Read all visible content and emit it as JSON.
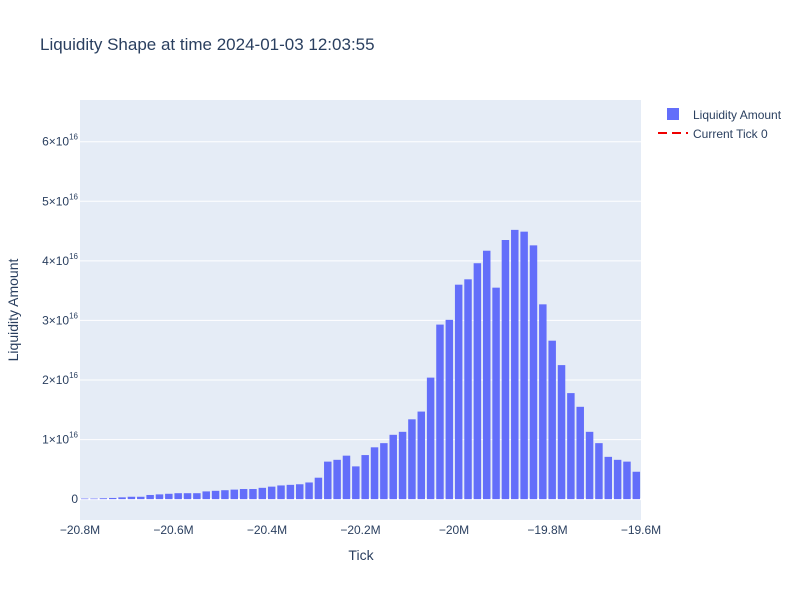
{
  "chart_data": {
    "type": "bar",
    "title": "Liquidity Shape at time 2024-01-03 12:03:55",
    "xlabel": "Tick",
    "ylabel": "Liquidity Amount",
    "xlim": [
      -20800000,
      -19600000
    ],
    "ylim": [
      -3500000000000000.0,
      6.7e+16
    ],
    "x_ticks": [
      {
        "value": -20800000,
        "label": "−20.8M"
      },
      {
        "value": -20600000,
        "label": "−20.6M"
      },
      {
        "value": -20400000,
        "label": "−20.4M"
      },
      {
        "value": -20200000,
        "label": "−20.2M"
      },
      {
        "value": -20000000,
        "label": "−20M"
      },
      {
        "value": -19800000,
        "label": "−19.8M"
      },
      {
        "value": -19600000,
        "label": "−19.6M"
      }
    ],
    "y_ticks": [
      {
        "value": 0,
        "base": "0",
        "exp": ""
      },
      {
        "value": 1e+16,
        "base": "1×10",
        "exp": "16"
      },
      {
        "value": 2e+16,
        "base": "2×10",
        "exp": "16"
      },
      {
        "value": 3e+16,
        "base": "3×10",
        "exp": "16"
      },
      {
        "value": 4e+16,
        "base": "4×10",
        "exp": "16"
      },
      {
        "value": 5e+16,
        "base": "5×10",
        "exp": "16"
      },
      {
        "value": 6e+16,
        "base": "6×10",
        "exp": "16"
      }
    ],
    "bin_start": -20800000,
    "bin_width": 20000,
    "series": [
      {
        "name": "Liquidity Amount",
        "color": "#636efa",
        "values": [
          100000000000000.0,
          100000000000000.0,
          150000000000000.0,
          200000000000000.0,
          300000000000000.0,
          400000000000000.0,
          400000000000000.0,
          700000000000000.0,
          800000000000000.0,
          900000000000000.0,
          1000000000000000.0,
          1000000000000000.0,
          1000000000000000.0,
          1300000000000000.0,
          1400000000000000.0,
          1500000000000000.0,
          1600000000000000.0,
          1700000000000000.0,
          1700000000000000.0,
          1900000000000000.0,
          2100000000000000.0,
          2300000000000000.0,
          2400000000000000.0,
          2500000000000000.0,
          2800000000000000.0,
          3600000000000000.0,
          6300000000000000.0,
          6600000000000000.0,
          7300000000000000.0,
          5500000000000000.0,
          7400000000000000.0,
          8700000000000000.0,
          9400000000000000.0,
          1.08e+16,
          1.13e+16,
          1.34e+16,
          1.47e+16,
          2.04e+16,
          2.93e+16,
          3.01e+16,
          3.6e+16,
          3.69e+16,
          3.96e+16,
          4.17e+16,
          3.55e+16,
          4.35e+16,
          4.52e+16,
          4.49e+16,
          4.26e+16,
          3.27e+16,
          2.66e+16,
          2.25e+16,
          1.78e+16,
          1.55e+16,
          1.13e+16,
          9400000000000000.0,
          7100000000000000.0,
          6600000000000000.0,
          6300000000000000.0,
          4600000000000000.0,
          4600000000000000.0
        ]
      }
    ],
    "legend": {
      "placement": "top-right",
      "entries": [
        {
          "name": "Liquidity Amount",
          "kind": "bar",
          "color": "#636efa"
        },
        {
          "name": "Current Tick 0",
          "kind": "dashed-line",
          "color": "#ef0000"
        }
      ]
    },
    "colors": {
      "plot_bg": "#e5ecf6",
      "grid": "#ffffff",
      "text": "#2a3f5f",
      "bar": "#636efa",
      "current_tick": "#ef0000"
    },
    "grid": true
  }
}
